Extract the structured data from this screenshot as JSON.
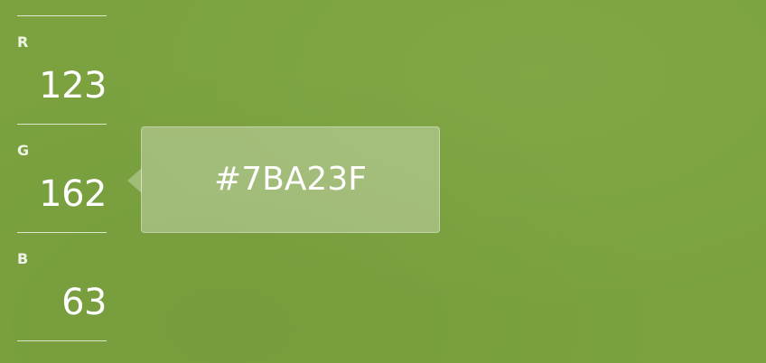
{
  "swatch": {
    "color": "#7BA23F"
  },
  "channels": [
    {
      "label": "R",
      "value": "123"
    },
    {
      "label": "G",
      "value": "162"
    },
    {
      "label": "B",
      "value": "63"
    }
  ],
  "tooltip": {
    "hex": "#7BA23F"
  }
}
